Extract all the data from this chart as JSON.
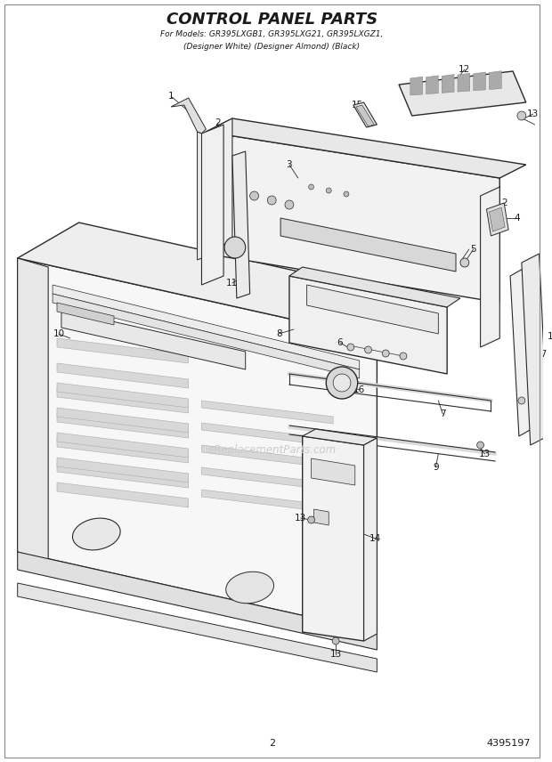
{
  "title_line1": "CONTROL PANEL PARTS",
  "title_line2": "For Models: GR395LXGB1, GR395LXG21, GR395LXGZ1,",
  "title_line3": "(Designer White) (Designer Almond) (Black)",
  "page_number": "2",
  "part_number": "4395197",
  "watermark": "eReplacementParts.com",
  "bg": "#ffffff",
  "lc": "#2a2a2a",
  "fig_width": 6.2,
  "fig_height": 8.56,
  "dpi": 100
}
